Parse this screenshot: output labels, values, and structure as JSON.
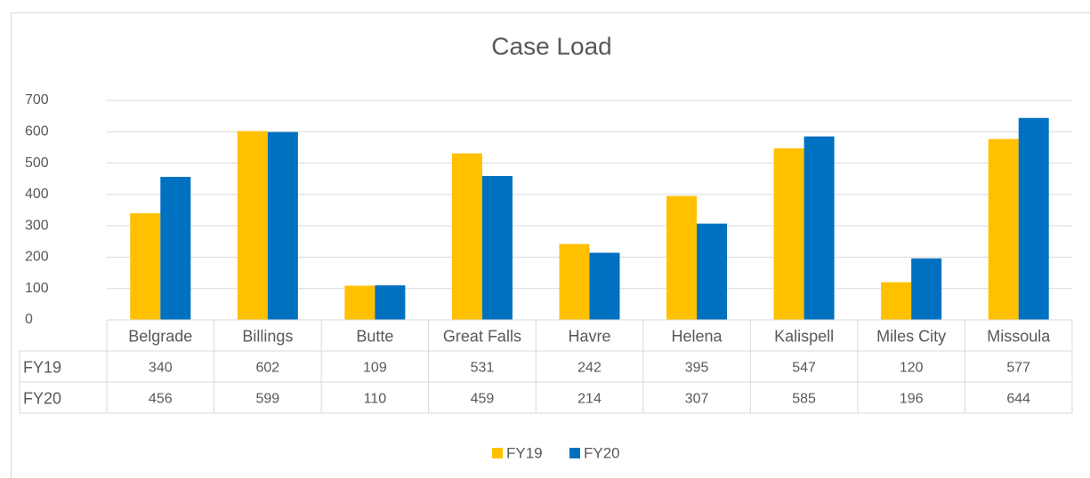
{
  "chart_data": {
    "type": "bar",
    "title": "Case Load",
    "categories": [
      "Belgrade",
      "Billings",
      "Butte",
      "Great Falls",
      "Havre",
      "Helena",
      "Kalispell",
      "Miles City",
      "Missoula"
    ],
    "series": [
      {
        "name": "FY19",
        "color": "#FFC000",
        "values": [
          340,
          602,
          109,
          531,
          242,
          395,
          547,
          120,
          577
        ]
      },
      {
        "name": "FY20",
        "color": "#0070C0",
        "values": [
          456,
          599,
          110,
          459,
          214,
          307,
          585,
          196,
          644
        ]
      }
    ],
    "ylim": [
      0,
      700
    ],
    "yticks": [
      0,
      100,
      200,
      300,
      400,
      500,
      600,
      700
    ],
    "grid": true,
    "legend": "bottom",
    "data_table": true
  }
}
